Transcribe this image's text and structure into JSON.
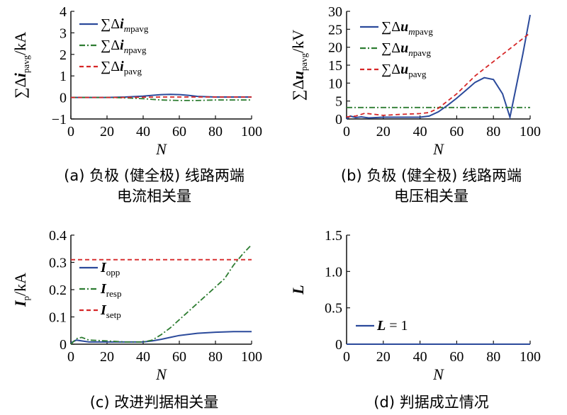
{
  "chart_data": [
    {
      "type": "line",
      "caption_lines": [
        "(a) 负极 (健全极) 线路两端",
        "电流相关量"
      ],
      "xlabel": "N",
      "ylabel": "∑Δi_pavg/kA",
      "ylabel_parts": {
        "pre": "∑Δ",
        "var": "i",
        "sub": "pavg",
        "unit": "/kA"
      },
      "xlim": [
        0,
        100
      ],
      "ylim": [
        -1,
        4
      ],
      "xticks": [
        "0",
        "20",
        "40",
        "60",
        "80",
        "100"
      ],
      "yticks": [
        "−1",
        "0",
        "1",
        "2",
        "3",
        "4"
      ],
      "legend_position": "top-left",
      "series": [
        {
          "name": "∑Δi_mpavg",
          "leg": {
            "pre": "∑Δ",
            "var": "i",
            "sub_i": "m",
            "sub": "pavg"
          },
          "color": "#2b4a9b",
          "dash": "none",
          "x": [
            0,
            10,
            20,
            30,
            40,
            45,
            50,
            55,
            60,
            65,
            70,
            80,
            90,
            100
          ],
          "y": [
            0.0,
            0.0,
            0.0,
            0.02,
            0.06,
            0.1,
            0.13,
            0.14,
            0.13,
            0.1,
            0.05,
            0.02,
            0.02,
            0.02
          ]
        },
        {
          "name": "∑Δi_npavg",
          "leg": {
            "pre": "∑Δ",
            "var": "i",
            "sub_i": "n",
            "sub": "pavg"
          },
          "color": "#2e7d32",
          "dash": "8 3 2 3",
          "x": [
            0,
            10,
            20,
            30,
            40,
            50,
            60,
            70,
            80,
            90,
            100
          ],
          "y": [
            0.0,
            0.0,
            0.0,
            -0.02,
            -0.06,
            -0.12,
            -0.14,
            -0.14,
            -0.12,
            -0.12,
            -0.12
          ]
        },
        {
          "name": "∑Δi_pavg",
          "leg": {
            "pre": "∑Δ",
            "var": "i",
            "sub_i": "",
            "sub": "pavg"
          },
          "color": "#d62728",
          "dash": "6 4",
          "x": [
            0,
            10,
            20,
            30,
            40,
            50,
            60,
            70,
            80,
            90,
            100
          ],
          "y": [
            0.0,
            0.0,
            0.0,
            0.0,
            0.01,
            0.02,
            0.02,
            0.02,
            0.02,
            0.02,
            0.02
          ]
        }
      ]
    },
    {
      "type": "line",
      "caption_lines": [
        "(b) 负极 (健全极) 线路两端",
        "电压相关量"
      ],
      "xlabel": "N",
      "ylabel": "∑Δu_pavg/kV",
      "ylabel_parts": {
        "pre": "∑Δ",
        "var": "u",
        "sub": "pavg",
        "unit": "/kV"
      },
      "xlim": [
        0,
        100
      ],
      "ylim": [
        0,
        30
      ],
      "xticks": [
        "0",
        "20",
        "40",
        "60",
        "80",
        "100"
      ],
      "yticks": [
        "0",
        "5",
        "10",
        "15",
        "20",
        "25",
        "30"
      ],
      "legend_position": "top-left",
      "series": [
        {
          "name": "∑Δu_mpavg",
          "leg": {
            "pre": "∑Δ",
            "var": "u",
            "sub_i": "m",
            "sub": "pavg"
          },
          "color": "#2b4a9b",
          "dash": "none",
          "x": [
            0,
            2,
            5,
            8,
            12,
            20,
            30,
            40,
            45,
            50,
            55,
            60,
            65,
            70,
            75,
            80,
            85,
            89,
            92,
            96,
            100
          ],
          "y": [
            0.0,
            0.8,
            0.4,
            0.6,
            0.3,
            0.5,
            0.5,
            0.5,
            0.8,
            2.0,
            3.8,
            5.8,
            8.0,
            10.2,
            11.5,
            11.0,
            7.0,
            0.5,
            8.0,
            18.0,
            29.0
          ]
        },
        {
          "name": "∑Δu_npavg",
          "leg": {
            "pre": "∑Δ",
            "var": "u",
            "sub_i": "n",
            "sub": "pavg"
          },
          "color": "#2e7d32",
          "dash": "8 3 2 3",
          "x": [
            0,
            20,
            40,
            60,
            80,
            100
          ],
          "y": [
            3.2,
            3.2,
            3.2,
            3.2,
            3.2,
            3.2
          ]
        },
        {
          "name": "∑Δu_pavg",
          "leg": {
            "pre": "∑Δ",
            "var": "u",
            "sub_i": "",
            "sub": "pavg"
          },
          "color": "#d62728",
          "dash": "6 4",
          "x": [
            0,
            5,
            10,
            20,
            30,
            40,
            45,
            50,
            60,
            70,
            80,
            90,
            100
          ],
          "y": [
            0.6,
            0.8,
            1.6,
            1.0,
            1.3,
            1.5,
            1.8,
            3.0,
            7.0,
            12.0,
            16.0,
            20.0,
            24.0
          ]
        }
      ]
    },
    {
      "type": "line",
      "caption_lines": [
        "(c) 改进判据相关量"
      ],
      "xlabel": "N",
      "ylabel": "I_p/kA",
      "ylabel_parts": {
        "pre": "",
        "var": "I",
        "sub": "p",
        "unit": "/kA"
      },
      "xlim": [
        0,
        100
      ],
      "ylim": [
        0,
        0.4
      ],
      "xticks": [
        "0",
        "20",
        "40",
        "60",
        "80",
        "100"
      ],
      "yticks": [
        "0",
        "0.1",
        "0.2",
        "0.3",
        "0.4"
      ],
      "legend_position": "middle-left",
      "series": [
        {
          "name": "I_opp",
          "leg": {
            "pre": "",
            "var": "I",
            "sub_i": "",
            "sub": "opp"
          },
          "color": "#2b4a9b",
          "dash": "none",
          "x": [
            0,
            3,
            6,
            10,
            20,
            30,
            40,
            45,
            50,
            55,
            60,
            70,
            80,
            90,
            100
          ],
          "y": [
            0.005,
            0.015,
            0.012,
            0.008,
            0.008,
            0.008,
            0.008,
            0.012,
            0.018,
            0.025,
            0.032,
            0.04,
            0.044,
            0.046,
            0.046
          ]
        },
        {
          "name": "I_resp",
          "leg": {
            "pre": "",
            "var": "I",
            "sub_i": "",
            "sub": "resp"
          },
          "color": "#2e7d32",
          "dash": "8 3 2 3",
          "x": [
            0,
            3,
            6,
            10,
            20,
            30,
            40,
            45,
            50,
            55,
            60,
            65,
            70,
            75,
            80,
            85,
            90,
            95,
            100
          ],
          "y": [
            0.0,
            0.02,
            0.025,
            0.015,
            0.012,
            0.008,
            0.008,
            0.015,
            0.035,
            0.06,
            0.09,
            0.12,
            0.15,
            0.18,
            0.21,
            0.24,
            0.29,
            0.33,
            0.365
          ]
        },
        {
          "name": "I_setp",
          "leg": {
            "pre": "",
            "var": "I",
            "sub_i": "",
            "sub": "setp"
          },
          "color": "#d62728",
          "dash": "6 4",
          "x": [
            0,
            100
          ],
          "y": [
            0.31,
            0.31
          ]
        }
      ]
    },
    {
      "type": "line",
      "caption_lines": [
        "(d) 判据成立情况"
      ],
      "xlabel": "N",
      "ylabel": "L",
      "ylabel_parts": {
        "pre": "",
        "var": "L",
        "sub": "",
        "unit": ""
      },
      "xlim": [
        0,
        100
      ],
      "ylim": [
        0,
        1.5
      ],
      "xticks": [
        "0",
        "20",
        "40",
        "60",
        "80",
        "100"
      ],
      "yticks": [
        "0",
        "0.5",
        "1.0",
        "1.5"
      ],
      "legend_position": "bottom-left",
      "series": [
        {
          "name": "L = 1",
          "leg": {
            "pre": "",
            "var": "L",
            "sub_i": "",
            "sub": "",
            "post": " = 1"
          },
          "color": "#2b4a9b",
          "dash": "none",
          "x": [
            0,
            100
          ],
          "y": [
            0,
            0
          ]
        }
      ]
    }
  ]
}
